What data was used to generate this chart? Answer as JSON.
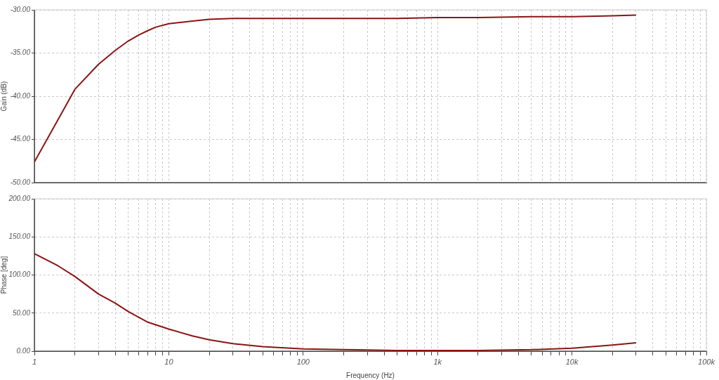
{
  "chart_data": [
    {
      "type": "line",
      "ylabel": "Gain (dB)",
      "log": "x",
      "grid": true,
      "tick_labels": "y",
      "color": "#8b1414",
      "x": [
        1,
        1.5,
        2,
        3,
        4,
        5,
        6,
        7,
        8,
        10,
        15,
        20,
        30,
        50,
        100,
        200,
        500,
        1000,
        2000,
        5000,
        10000,
        20000,
        30000
      ],
      "values": [
        -47.6,
        -42.7,
        -39.2,
        -36.3,
        -34.7,
        -33.6,
        -32.9,
        -32.4,
        -32.0,
        -31.6,
        -31.3,
        -31.1,
        -31.0,
        -31.0,
        -31.0,
        -31.0,
        -31.0,
        -30.9,
        -30.9,
        -30.8,
        -30.8,
        -30.7,
        -30.6
      ],
      "xlim": [
        1,
        100000
      ],
      "ylim": [
        -50,
        -30
      ],
      "yticks": [
        {
          "value": -50,
          "label": "-50.00"
        },
        {
          "value": -45,
          "label": "-45.00"
        },
        {
          "value": -40,
          "label": "-40.00"
        },
        {
          "value": -35,
          "label": "-35.00"
        },
        {
          "value": -30,
          "label": "-30.00"
        }
      ],
      "xticks": [
        1,
        {
          "value": 2,
          "label": null
        },
        {
          "value": 3,
          "label": null
        },
        {
          "value": 4,
          "label": null
        },
        {
          "value": 5,
          "label": null
        },
        {
          "value": 6,
          "label": null
        },
        {
          "value": 7,
          "label": null
        },
        {
          "value": 8,
          "label": null
        },
        {
          "value": 9,
          "label": null
        },
        10,
        {
          "value": 20,
          "label": null
        },
        {
          "value": 30,
          "label": null
        },
        {
          "value": 40,
          "label": null
        },
        {
          "value": 50,
          "label": null
        },
        {
          "value": 60,
          "label": null
        },
        {
          "value": 70,
          "label": null
        },
        {
          "value": 80,
          "label": null
        },
        {
          "value": 90,
          "label": null
        },
        100,
        {
          "value": 200,
          "label": null
        },
        {
          "value": 300,
          "label": null
        },
        {
          "value": 400,
          "label": null
        },
        {
          "value": 500,
          "label": null
        },
        {
          "value": 600,
          "label": null
        },
        {
          "value": 700,
          "label": null
        },
        {
          "value": 800,
          "label": null
        },
        {
          "value": 900,
          "label": null
        },
        1000,
        {
          "value": 2000,
          "label": null
        },
        {
          "value": 3000,
          "label": null
        },
        {
          "value": 4000,
          "label": null
        },
        {
          "value": 5000,
          "label": null
        },
        {
          "value": 6000,
          "label": null
        },
        {
          "value": 7000,
          "label": null
        },
        {
          "value": 8000,
          "label": null
        },
        {
          "value": 9000,
          "label": null
        },
        10000,
        {
          "value": 20000,
          "label": null
        },
        {
          "value": 30000,
          "label": null
        },
        {
          "value": 40000,
          "label": null
        },
        {
          "value": 50000,
          "label": null
        },
        {
          "value": 60000,
          "label": null
        },
        {
          "value": 70000,
          "label": null
        },
        {
          "value": 80000,
          "label": null
        },
        {
          "value": 90000,
          "label": null
        },
        100000
      ]
    },
    {
      "type": "line",
      "xlabel": "Frequency (Hz)",
      "ylabel": "Phase [deg]",
      "log": "x",
      "grid": true,
      "color": "#8b1414",
      "x": [
        1,
        1.5,
        2,
        3,
        4,
        5,
        7,
        10,
        15,
        20,
        30,
        50,
        100,
        200,
        500,
        1000,
        2000,
        5000,
        10000,
        20000,
        30000
      ],
      "values": [
        128,
        112,
        98,
        75,
        63,
        52,
        38,
        29,
        20,
        15,
        10,
        6,
        3,
        2,
        1,
        1,
        1,
        2,
        4,
        8,
        11
      ],
      "xlim": [
        1,
        100000
      ],
      "ylim": [
        0,
        200
      ],
      "yticks": [
        {
          "value": 0,
          "label": "0.00"
        },
        {
          "value": 50,
          "label": "50.00"
        },
        {
          "value": 100,
          "label": "100.00"
        },
        {
          "value": 150,
          "label": "150.00"
        },
        {
          "value": 200,
          "label": "200.00"
        }
      ],
      "xticks": [
        1,
        {
          "value": 2,
          "label": null
        },
        {
          "value": 3,
          "label": null
        },
        {
          "value": 4,
          "label": null
        },
        {
          "value": 5,
          "label": null
        },
        {
          "value": 6,
          "label": null
        },
        {
          "value": 7,
          "label": null
        },
        {
          "value": 8,
          "label": null
        },
        {
          "value": 9,
          "label": null
        },
        10,
        {
          "value": 20,
          "label": null
        },
        {
          "value": 30,
          "label": null
        },
        {
          "value": 40,
          "label": null
        },
        {
          "value": 50,
          "label": null
        },
        {
          "value": 60,
          "label": null
        },
        {
          "value": 70,
          "label": null
        },
        {
          "value": 80,
          "label": null
        },
        {
          "value": 90,
          "label": null
        },
        100,
        {
          "value": 200,
          "label": null
        },
        {
          "value": 300,
          "label": null
        },
        {
          "value": 400,
          "label": null
        },
        {
          "value": 500,
          "label": null
        },
        {
          "value": 600,
          "label": null
        },
        {
          "value": 700,
          "label": null
        },
        {
          "value": 800,
          "label": null
        },
        {
          "value": 900,
          "label": null
        },
        {
          "value": 1000,
          "label": "1k"
        },
        {
          "value": 2000,
          "label": null
        },
        {
          "value": 3000,
          "label": null
        },
        {
          "value": 4000,
          "label": null
        },
        {
          "value": 5000,
          "label": null
        },
        {
          "value": 6000,
          "label": null
        },
        {
          "value": 7000,
          "label": null
        },
        {
          "value": 8000,
          "label": null
        },
        {
          "value": 9000,
          "label": null
        },
        {
          "value": 10000,
          "label": "10k"
        },
        {
          "value": 20000,
          "label": null
        },
        {
          "value": 30000,
          "label": null
        },
        {
          "value": 40000,
          "label": null
        },
        {
          "value": 50000,
          "label": null
        },
        {
          "value": 60000,
          "label": null
        },
        {
          "value": 70000,
          "label": null
        },
        {
          "value": 80000,
          "label": null
        },
        {
          "value": 90000,
          "label": null
        },
        {
          "value": 100000,
          "label": "100k"
        }
      ]
    }
  ]
}
